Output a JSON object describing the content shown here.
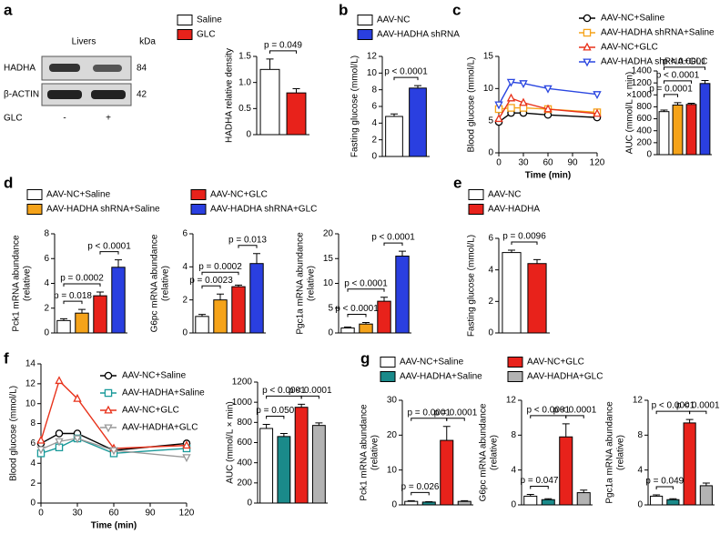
{
  "blot": {
    "panel": "a",
    "tissue": "Livers",
    "unit": "kDa",
    "rows": [
      {
        "name": "HADHA",
        "kda": "84"
      },
      {
        "name": "β-ACTIN",
        "kda": "42"
      }
    ],
    "treatment": "GLC",
    "lanes": [
      "-",
      "+"
    ]
  },
  "chart_data": [
    {
      "type": "bar",
      "ylabel": [
        "HADHA relative density"
      ],
      "values": [
        1.25,
        0.8
      ],
      "errors": [
        0.2,
        0.08
      ],
      "colors": [
        "#ffffff",
        "#e8221b"
      ],
      "legend": [
        "Saline",
        "GLC"
      ],
      "ylim": [
        0,
        1.5
      ],
      "yticks": [
        0,
        0.5,
        {
          "value": 1,
          "label": "1.0"
        },
        1.5
      ],
      "annotations": [
        {
          "text": "p = 0.049",
          "between": [
            0,
            1
          ]
        }
      ]
    },
    {
      "type": "bar",
      "panel": "b",
      "ylabel": [
        "Fasting glucose (mmol/L)"
      ],
      "values": [
        4.8,
        8.2
      ],
      "errors": [
        0.3,
        0.3
      ],
      "colors": [
        "#ffffff",
        "#2a3fe0"
      ],
      "legend": [
        "AAV-NC",
        "AAV-HADHA shRNA"
      ],
      "ylim": [
        0,
        12
      ],
      "yticks": [
        0,
        2,
        4,
        6,
        8,
        10,
        12
      ],
      "annotations": [
        {
          "text": "p < 0.0001",
          "between": [
            0,
            1
          ]
        }
      ]
    },
    {
      "type": "line",
      "panel": "c",
      "xlabel": "Time (min)",
      "ylabel": [
        "Blood glucose (mmol/L)"
      ],
      "x": [
        0,
        15,
        30,
        60,
        120
      ],
      "xlim": [
        0,
        120
      ],
      "xticks": [
        0,
        30,
        60,
        90,
        120
      ],
      "ylim": [
        0,
        15
      ],
      "yticks": [
        0,
        5,
        10,
        15
      ],
      "series": [
        {
          "name": "AAV-NC+Saline",
          "color": "#000000",
          "marker": "circle",
          "values": [
            4.8,
            6.2,
            6.2,
            5.9,
            5.5
          ]
        },
        {
          "name": "AAV-HADHA shRNA+Saline",
          "color": "#f5a31a",
          "marker": "square",
          "values": [
            6.8,
            7.0,
            7.0,
            6.8,
            6.3
          ]
        },
        {
          "name": "AAV-NC+GLC",
          "color": "#e8321b",
          "marker": "triangle",
          "values": [
            5.3,
            8.5,
            7.8,
            6.8,
            6.1
          ]
        },
        {
          "name": "AAV-HADHA shRNA+GLC",
          "color": "#2a46e0",
          "marker": "triangle-down",
          "values": [
            7.5,
            11.0,
            10.8,
            10.0,
            9.1
          ]
        }
      ]
    },
    {
      "type": "bar",
      "ylabel": [
        "AUC (mmol/L × min)"
      ],
      "values": [
        720,
        830,
        840,
        1190
      ],
      "errors": [
        25,
        40,
        20,
        50
      ],
      "colors": [
        "#ffffff",
        "#f5a31a",
        "#e8221b",
        "#2a3fe0"
      ],
      "ylim": [
        0,
        1400
      ],
      "yticks": [
        0,
        200,
        400,
        600,
        800,
        1000,
        1200,
        1400
      ],
      "annotations": [
        {
          "text": "p = 0.0001",
          "between": [
            0,
            1
          ]
        },
        {
          "text": "p < 0.0001",
          "between": [
            0,
            2
          ]
        },
        {
          "text": "p < 0.0001",
          "between": [
            0,
            3
          ]
        }
      ]
    },
    {
      "type": "bar",
      "panel": "d",
      "ylabel": [
        "Pck1 mRNA abundance",
        "(relative)"
      ],
      "values": [
        1.0,
        1.6,
        3.0,
        5.3
      ],
      "errors": [
        0.15,
        0.3,
        0.3,
        0.6
      ],
      "colors": [
        "#ffffff",
        "#f5a31a",
        "#e8221b",
        "#2a3fe0"
      ],
      "legend": [
        "AAV-NC+Saline",
        "AAV-HADHA shRNA+Saline",
        "AAV-NC+GLC",
        "AAV-HADHA shRNA+GLC"
      ],
      "legend_columns": 2,
      "ylim": [
        0,
        8
      ],
      "yticks": [
        0,
        2,
        4,
        6,
        8
      ],
      "annotations": [
        {
          "text": "p = 0.018",
          "between": [
            0,
            1
          ]
        },
        {
          "text": "p = 0.0002",
          "between": [
            0,
            2
          ]
        },
        {
          "text": "p < 0.0001",
          "between": [
            2,
            3
          ]
        }
      ]
    },
    {
      "type": "bar",
      "ylabel": [
        "G6pc mRNA abundance",
        "(relative)"
      ],
      "values": [
        1.0,
        2.0,
        2.8,
        4.2
      ],
      "errors": [
        0.12,
        0.35,
        0.1,
        0.6
      ],
      "colors": [
        "#ffffff",
        "#f5a31a",
        "#e8221b",
        "#2a3fe0"
      ],
      "ylim": [
        0,
        6
      ],
      "yticks": [
        0,
        2,
        4,
        6
      ],
      "annotations": [
        {
          "text": "p = 0.0023",
          "between": [
            0,
            1
          ]
        },
        {
          "text": "p = 0.0002",
          "between": [
            0,
            2
          ]
        },
        {
          "text": "p = 0.013",
          "between": [
            2,
            3
          ]
        }
      ]
    },
    {
      "type": "bar",
      "ylabel": [
        "Pgc1a mRNA abundance",
        "(relative)"
      ],
      "values": [
        1.0,
        1.8,
        6.4,
        15.5
      ],
      "errors": [
        0.2,
        0.3,
        0.8,
        1.0
      ],
      "colors": [
        "#ffffff",
        "#f5a31a",
        "#e8221b",
        "#2a3fe0"
      ],
      "ylim": [
        0,
        20
      ],
      "yticks": [
        0,
        5,
        10,
        15,
        20
      ],
      "annotations": [
        {
          "text": "p < 0.0001",
          "between": [
            0,
            1
          ]
        },
        {
          "text": "p < 0.0001",
          "between": [
            0,
            2
          ]
        },
        {
          "text": "p < 0.0001",
          "between": [
            2,
            3
          ]
        }
      ]
    },
    {
      "type": "bar",
      "panel": "e",
      "ylabel": [
        "Fasting glucose (mmol/L)"
      ],
      "values": [
        5.1,
        4.4
      ],
      "errors": [
        0.15,
        0.25
      ],
      "colors": [
        "#ffffff",
        "#e8221b"
      ],
      "legend": [
        "AAV-NC",
        "AAV-HADHA"
      ],
      "ylim": [
        0,
        6
      ],
      "yticks": [
        0,
        2,
        4,
        6
      ],
      "annotations": [
        {
          "text": "p = 0.0096",
          "between": [
            0,
            1
          ]
        }
      ]
    },
    {
      "type": "line",
      "panel": "f",
      "xlabel": "Time (min)",
      "ylabel": [
        "Blood glucose (mmol/L)"
      ],
      "x": [
        0,
        15,
        30,
        60,
        120
      ],
      "xlim": [
        0,
        120
      ],
      "xticks": [
        0,
        30,
        60,
        90,
        120
      ],
      "ylim": [
        0,
        14
      ],
      "yticks": [
        0,
        2,
        4,
        6,
        8,
        10,
        12,
        14
      ],
      "series": [
        {
          "name": "AAV-NC+Saline",
          "color": "#000000",
          "marker": "circle",
          "values": [
            6.0,
            7.0,
            7.0,
            5.3,
            6.0
          ]
        },
        {
          "name": "AAV-HADHA+Saline",
          "color": "#1a9a9a",
          "marker": "square",
          "values": [
            5.0,
            5.6,
            6.5,
            5.0,
            5.5
          ]
        },
        {
          "name": "AAV-NC+GLC",
          "color": "#e8321b",
          "marker": "triangle",
          "values": [
            6.3,
            12.3,
            10.5,
            5.5,
            5.8
          ]
        },
        {
          "name": "AAV-HADHA+GLC",
          "color": "#999999",
          "marker": "triangle-down",
          "values": [
            5.4,
            6.2,
            6.5,
            5.3,
            4.6
          ]
        }
      ]
    },
    {
      "type": "bar",
      "ylabel": [
        "AUC (mmol/L × min)"
      ],
      "values": [
        740,
        660,
        950,
        770
      ],
      "errors": [
        40,
        30,
        30,
        25
      ],
      "colors": [
        "#ffffff",
        "#1a8a8a",
        "#e8221b",
        "#b3b3b3"
      ],
      "ylim": [
        0,
        1200
      ],
      "yticks": [
        0,
        200,
        400,
        600,
        800,
        1000,
        1200
      ],
      "annotations": [
        {
          "text": "p = 0.050",
          "between": [
            0,
            1
          ]
        },
        {
          "text": "p < 0.0001",
          "between": [
            0,
            2
          ]
        },
        {
          "text": "p < 0.0001",
          "between": [
            2,
            3
          ]
        }
      ]
    },
    {
      "type": "bar",
      "panel": "g",
      "ylabel": [
        "Pck1 mRNA abundance",
        "(relative)"
      ],
      "values": [
        1.0,
        0.8,
        18.5,
        1.0
      ],
      "errors": [
        0.2,
        0.1,
        4.0,
        0.2
      ],
      "colors": [
        "#ffffff",
        "#1a8a8a",
        "#e8221b",
        "#b3b3b3"
      ],
      "legend": [
        "AAV-NC+Saline",
        "AAV-HADHA+Saline",
        "AAV-NC+GLC",
        "AAV-HADHA+GLC"
      ],
      "legend_columns": 2,
      "ylim": [
        0,
        30
      ],
      "yticks": [
        0,
        10,
        20,
        30
      ],
      "annotations": [
        {
          "text": "p = 0.026",
          "between": [
            0,
            1
          ]
        },
        {
          "text": "p = 0.0001",
          "between": [
            0,
            2
          ]
        },
        {
          "text": "p = 0.0001",
          "between": [
            2,
            3
          ]
        }
      ]
    },
    {
      "type": "bar",
      "ylabel": [
        "G6pc mRNA abundance",
        "(relative)"
      ],
      "values": [
        1.0,
        0.6,
        7.8,
        1.4
      ],
      "errors": [
        0.2,
        0.1,
        1.5,
        0.3
      ],
      "colors": [
        "#ffffff",
        "#1a8a8a",
        "#e8221b",
        "#b3b3b3"
      ],
      "ylim": [
        0,
        12
      ],
      "yticks": [
        0,
        4,
        8,
        12
      ],
      "annotations": [
        {
          "text": "p = 0.047",
          "between": [
            0,
            1
          ]
        },
        {
          "text": "p < 0.0001",
          "between": [
            0,
            2
          ]
        },
        {
          "text": "p < 0.0001",
          "between": [
            2,
            3
          ]
        }
      ]
    },
    {
      "type": "bar",
      "ylabel": [
        "Pgc1a mRNA abundance",
        "(relative)"
      ],
      "values": [
        1.0,
        0.6,
        9.4,
        2.2
      ],
      "errors": [
        0.15,
        0.1,
        0.4,
        0.3
      ],
      "colors": [
        "#ffffff",
        "#1a8a8a",
        "#e8221b",
        "#b3b3b3"
      ],
      "ylim": [
        0,
        12
      ],
      "yticks": [
        0,
        4,
        8,
        12
      ],
      "annotations": [
        {
          "text": "p = 0.049",
          "between": [
            0,
            1
          ]
        },
        {
          "text": "p < 0.0001",
          "between": [
            0,
            2
          ]
        },
        {
          "text": "p < 0.0001",
          "between": [
            2,
            3
          ]
        }
      ]
    }
  ]
}
